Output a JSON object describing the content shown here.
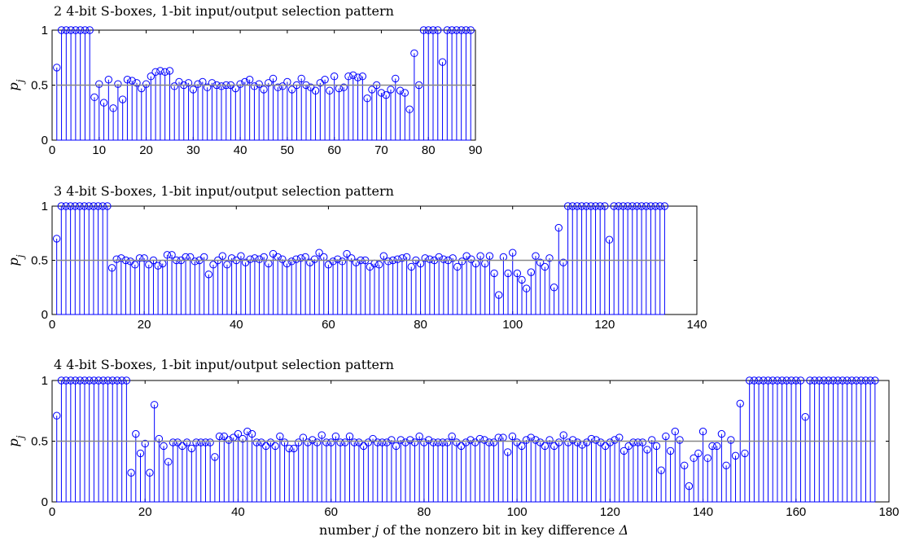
{
  "chart_data": [
    {
      "type": "stem",
      "title": "2 4-bit S-boxes, 1-bit input/output selection pattern",
      "ylabel": "p_j",
      "xlabel": "",
      "xlim": [
        0,
        90
      ],
      "ylim": [
        0,
        1
      ],
      "xticks": [
        0,
        10,
        20,
        30,
        40,
        50,
        60,
        70,
        80,
        90
      ],
      "yticks": [
        0,
        0.5,
        1
      ],
      "xtick_labels": [
        "0",
        "10",
        "20",
        "30",
        "40",
        "50",
        "60",
        "70",
        "80",
        "90"
      ],
      "ytick_labels": [
        "0",
        "0.5",
        "1"
      ],
      "reference_line": 0.5,
      "grid": false,
      "color": "#0000ff",
      "reference_color": "#888888",
      "values": [
        0.66,
        1,
        1,
        1,
        1,
        1,
        1,
        1,
        0.39,
        0.51,
        0.34,
        0.55,
        0.29,
        0.51,
        0.37,
        0.55,
        0.54,
        0.52,
        0.47,
        0.51,
        0.58,
        0.62,
        0.63,
        0.62,
        0.63,
        0.49,
        0.53,
        0.5,
        0.52,
        0.46,
        0.51,
        0.53,
        0.48,
        0.52,
        0.5,
        0.49,
        0.5,
        0.5,
        0.47,
        0.51,
        0.53,
        0.55,
        0.49,
        0.51,
        0.46,
        0.52,
        0.56,
        0.48,
        0.49,
        0.53,
        0.46,
        0.5,
        0.56,
        0.5,
        0.48,
        0.45,
        0.52,
        0.55,
        0.45,
        0.58,
        0.47,
        0.48,
        0.58,
        0.59,
        0.57,
        0.58,
        0.38,
        0.46,
        0.5,
        0.43,
        0.41,
        0.46,
        0.56,
        0.45,
        0.43,
        0.28,
        0.79,
        0.5,
        1,
        1,
        1,
        1,
        0.71,
        1,
        1,
        1,
        1,
        1,
        1
      ]
    },
    {
      "type": "stem",
      "title": "3 4-bit S-boxes, 1-bit input/output selection pattern",
      "ylabel": "p_j",
      "xlabel": "",
      "xlim": [
        0,
        140
      ],
      "ylim": [
        0,
        1
      ],
      "xticks": [
        0,
        20,
        40,
        60,
        80,
        100,
        120,
        140
      ],
      "yticks": [
        0,
        0.5,
        1
      ],
      "xtick_labels": [
        "0",
        "20",
        "40",
        "60",
        "80",
        "100",
        "120",
        "140"
      ],
      "ytick_labels": [
        "0",
        "0.5",
        "1"
      ],
      "reference_line": 0.5,
      "grid": false,
      "color": "#0000ff",
      "reference_color": "#888888",
      "values": [
        0.7,
        1,
        1,
        1,
        1,
        1,
        1,
        1,
        1,
        1,
        1,
        1,
        0.43,
        0.51,
        0.52,
        0.5,
        0.49,
        0.46,
        0.52,
        0.52,
        0.46,
        0.5,
        0.45,
        0.47,
        0.55,
        0.55,
        0.5,
        0.5,
        0.53,
        0.53,
        0.49,
        0.5,
        0.53,
        0.37,
        0.46,
        0.5,
        0.54,
        0.46,
        0.52,
        0.5,
        0.54,
        0.48,
        0.51,
        0.52,
        0.51,
        0.53,
        0.47,
        0.56,
        0.53,
        0.51,
        0.47,
        0.49,
        0.51,
        0.52,
        0.53,
        0.48,
        0.51,
        0.57,
        0.53,
        0.46,
        0.49,
        0.51,
        0.49,
        0.56,
        0.52,
        0.48,
        0.5,
        0.5,
        0.44,
        0.47,
        0.46,
        0.54,
        0.49,
        0.5,
        0.51,
        0.52,
        0.53,
        0.44,
        0.5,
        0.47,
        0.52,
        0.51,
        0.5,
        0.53,
        0.51,
        0.5,
        0.52,
        0.44,
        0.49,
        0.54,
        0.51,
        0.47,
        0.54,
        0.47,
        0.54,
        0.38,
        0.18,
        0.53,
        0.38,
        0.57,
        0.38,
        0.32,
        0.24,
        0.39,
        0.54,
        0.48,
        0.44,
        0.52,
        0.25,
        0.8,
        0.48,
        1,
        1,
        1,
        1,
        1,
        1,
        1,
        1,
        1,
        0.69,
        1,
        1,
        1,
        1,
        1,
        1,
        1,
        1,
        1,
        1,
        1,
        1
      ]
    },
    {
      "type": "stem",
      "title": "4 4-bit S-boxes, 1-bit input/output selection pattern",
      "ylabel": "p_j",
      "xlabel": "number j of the nonzero bit in key difference Δ",
      "xlim": [
        0,
        180
      ],
      "ylim": [
        0,
        1
      ],
      "xticks": [
        0,
        20,
        40,
        60,
        80,
        100,
        120,
        140,
        160,
        180
      ],
      "yticks": [
        0,
        0.5,
        1
      ],
      "xtick_labels": [
        "0",
        "20",
        "40",
        "60",
        "80",
        "100",
        "120",
        "140",
        "160",
        "180"
      ],
      "ytick_labels": [
        "0",
        "0.5",
        "1"
      ],
      "reference_line": 0.5,
      "grid": false,
      "color": "#0000ff",
      "reference_color": "#888888",
      "values": [
        0.71,
        1,
        1,
        1,
        1,
        1,
        1,
        1,
        1,
        1,
        1,
        1,
        1,
        1,
        1,
        1,
        0.24,
        0.56,
        0.4,
        0.48,
        0.24,
        0.8,
        0.52,
        0.46,
        0.33,
        0.49,
        0.49,
        0.46,
        0.49,
        0.44,
        0.49,
        0.49,
        0.49,
        0.49,
        0.37,
        0.54,
        0.54,
        0.51,
        0.53,
        0.56,
        0.52,
        0.58,
        0.56,
        0.49,
        0.49,
        0.46,
        0.49,
        0.46,
        0.54,
        0.49,
        0.44,
        0.44,
        0.49,
        0.53,
        0.49,
        0.51,
        0.49,
        0.55,
        0.49,
        0.49,
        0.54,
        0.49,
        0.49,
        0.54,
        0.49,
        0.49,
        0.46,
        0.49,
        0.52,
        0.49,
        0.49,
        0.49,
        0.51,
        0.46,
        0.51,
        0.49,
        0.51,
        0.49,
        0.54,
        0.49,
        0.51,
        0.49,
        0.49,
        0.49,
        0.49,
        0.54,
        0.49,
        0.46,
        0.49,
        0.51,
        0.49,
        0.52,
        0.51,
        0.49,
        0.49,
        0.53,
        0.53,
        0.41,
        0.54,
        0.49,
        0.46,
        0.51,
        0.53,
        0.51,
        0.49,
        0.46,
        0.51,
        0.46,
        0.49,
        0.55,
        0.49,
        0.51,
        0.49,
        0.47,
        0.49,
        0.52,
        0.51,
        0.49,
        0.46,
        0.49,
        0.51,
        0.53,
        0.42,
        0.46,
        0.49,
        0.49,
        0.49,
        0.43,
        0.51,
        0.46,
        0.26,
        0.54,
        0.42,
        0.58,
        0.51,
        0.3,
        0.13,
        0.36,
        0.4,
        0.58,
        0.36,
        0.46,
        0.46,
        0.56,
        0.3,
        0.51,
        0.38,
        0.81,
        0.4,
        1,
        1,
        1,
        1,
        1,
        1,
        1,
        1,
        1,
        1,
        1,
        1,
        0.7,
        1,
        1,
        1,
        1,
        1,
        1,
        1,
        1,
        1,
        1,
        1,
        1,
        1,
        1,
        1
      ]
    }
  ]
}
